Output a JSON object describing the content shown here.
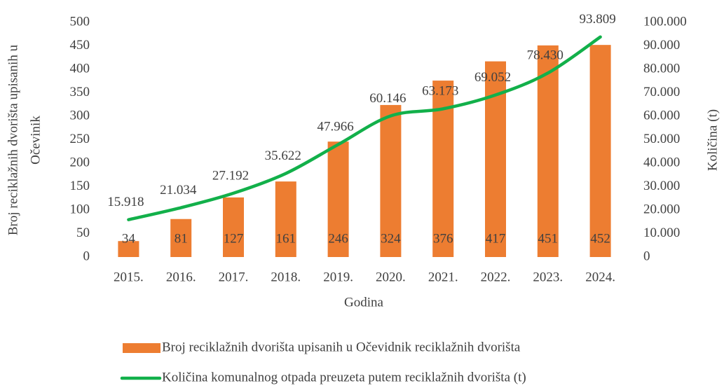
{
  "chart_data": {
    "type": "bar_line",
    "categories": [
      "2015.",
      "2016.",
      "2017.",
      "2018.",
      "2019.",
      "2020.",
      "2021.",
      "2022.",
      "2023.",
      "2024."
    ],
    "series": [
      {
        "name": "Broj reciklažnih dvorišta upisanih u Očevidnik reciklažnih dvorišta",
        "type": "bar",
        "color": "#ed7d31",
        "values": [
          34,
          81,
          127,
          161,
          246,
          324,
          376,
          417,
          451,
          452
        ]
      },
      {
        "name": "Količina komunalnog otpada preuzeta putem reciklažnih dvorišta (t)",
        "type": "line",
        "color": "#12b04a",
        "axis": "y2",
        "values": [
          15918,
          21034,
          27192,
          35622,
          47966,
          60146,
          63173,
          69052,
          78430,
          93809
        ],
        "value_labels": [
          "15.918",
          "21.034",
          "27.192",
          "35.622",
          "47.966",
          "60.146",
          "63.173",
          "69.052",
          "78.430",
          "93.809"
        ]
      }
    ],
    "xlabel": "Godina",
    "ylabel": [
      "Broj reciklažnih dvorišta upisanih u",
      "Očevinik"
    ],
    "y2label": "Količina (t)",
    "ylim": [
      0,
      500
    ],
    "yticks": [
      0,
      50,
      100,
      150,
      200,
      250,
      300,
      350,
      400,
      450,
      500
    ],
    "y2lim": [
      0,
      100000
    ],
    "y2ticks": [
      0,
      {
        "value": 10000,
        "label": "10.000"
      },
      {
        "value": 20000,
        "label": "20.000"
      },
      {
        "value": 30000,
        "label": "30.000"
      },
      {
        "value": 40000,
        "label": "40.000"
      },
      {
        "value": 50000,
        "label": "50.000"
      },
      {
        "value": 60000,
        "label": "60.000"
      },
      {
        "value": 70000,
        "label": "70.000"
      },
      {
        "value": 80000,
        "label": "80.000"
      },
      {
        "value": 90000,
        "label": "90.000"
      },
      {
        "value": 100000,
        "label": "100.000"
      }
    ],
    "legend": "bottom"
  }
}
